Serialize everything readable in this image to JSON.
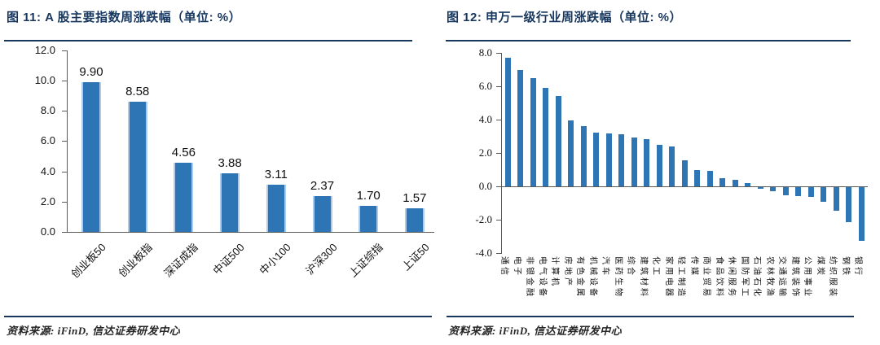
{
  "figures": [
    {
      "title": "图 11: A 股主要指数周涨跌幅（单位: %）",
      "source": "资料来源: iFinD, 信达证券研发中心"
    },
    {
      "title": "图 12: 申万一级行业周涨跌幅（单位: %）",
      "source": "资料来源: iFinD, 信达证券研发中心"
    }
  ],
  "chart_data": [
    {
      "type": "bar",
      "title": "图 11: A 股主要指数周涨跌幅（单位: %）",
      "categories": [
        "创业板50",
        "创业板指",
        "深证成指",
        "中证500",
        "中小100",
        "沪深300",
        "上证综指",
        "上证50"
      ],
      "values": [
        9.9,
        8.58,
        4.56,
        3.88,
        3.11,
        2.37,
        1.7,
        1.57
      ],
      "data_labels": [
        "9.90",
        "8.58",
        "4.56",
        "3.88",
        "3.11",
        "2.37",
        "1.70",
        "1.57"
      ],
      "xlabel": "",
      "ylabel": "",
      "ylim": [
        0,
        12
      ],
      "yticks": [
        "12.0",
        "10.0",
        "8.0",
        "6.0",
        "4.0",
        "2.0",
        "0.0"
      ],
      "grid": false,
      "legend": "none",
      "bar_color": "#2E75B6",
      "accent_color": "#17375E"
    },
    {
      "type": "bar",
      "title": "图 12: 申万一级行业周涨跌幅（单位: %）",
      "categories": [
        "通信",
        "电子",
        "非银金融",
        "电气设备",
        "计算机",
        "房地产",
        "有色金属",
        "机械设备",
        "汽车",
        "医药生物",
        "综合",
        "建筑材料",
        "化工",
        "家用电器",
        "轻工制造",
        "传媒",
        "商业贸易",
        "食品饮料",
        "休闲服务",
        "国防军工",
        "石油石化",
        "农林牧渔",
        "交通运输",
        "建筑装饰",
        "公用事业",
        "煤炭",
        "纺织服装",
        "钢铁",
        "银行"
      ],
      "values": [
        7.7,
        7.0,
        6.5,
        5.9,
        5.4,
        3.95,
        3.6,
        3.2,
        3.15,
        3.1,
        2.95,
        2.85,
        2.5,
        2.4,
        1.55,
        1.0,
        0.95,
        0.5,
        0.4,
        0.2,
        -0.1,
        -0.25,
        -0.5,
        -0.55,
        -0.6,
        -0.9,
        -1.4,
        -2.1,
        -3.2
      ],
      "xlabel": "",
      "ylabel": "",
      "ylim": [
        -4,
        8
      ],
      "yticks": [
        "8.0",
        "6.0",
        "4.0",
        "2.0",
        "0.0",
        "-2.0",
        "-4.0"
      ],
      "grid": false,
      "legend": "none",
      "bar_color": "#2E75B6",
      "accent_color": "#17375E"
    }
  ]
}
